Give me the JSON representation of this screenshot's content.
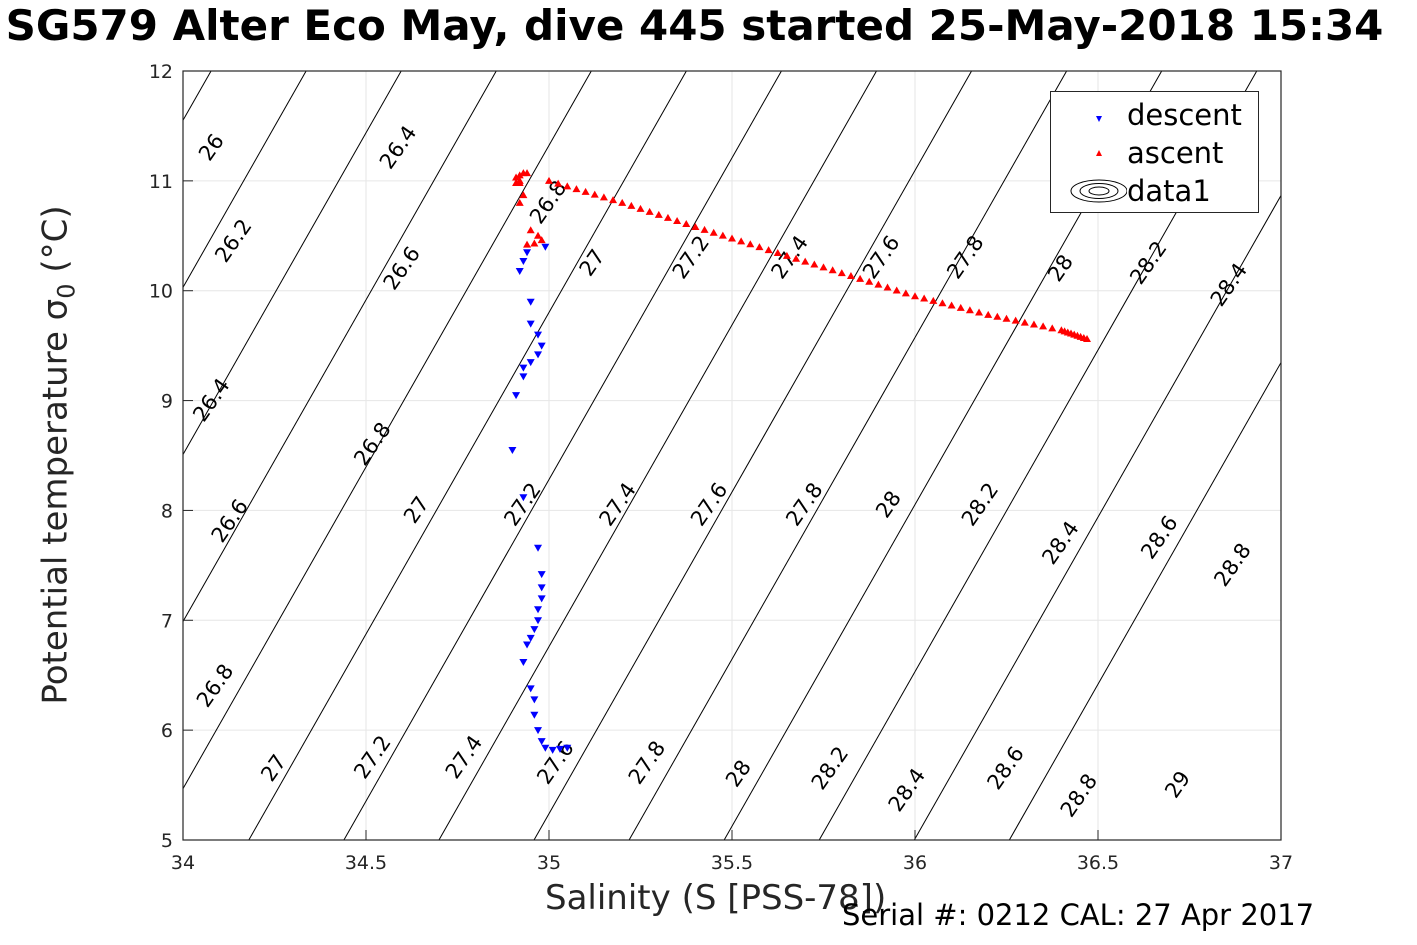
{
  "title": "SG579 Alter Eco May, dive 445 started 25-May-2018 15:34",
  "footer": "Serial #: 0212  CAL: 27 Apr 2017",
  "chart_data": {
    "type": "scatter",
    "title": "SG579 Alter Eco May, dive 445 started 25-May-2018 15:34",
    "xlabel": "Salinity (S [PSS-78])",
    "ylabel": "Potential temperature σ₀ (°C)",
    "xlim": [
      34,
      37
    ],
    "ylim": [
      5,
      12
    ],
    "xticks": [
      34,
      34.5,
      35,
      35.5,
      36,
      36.5,
      37
    ],
    "xtick_labels": [
      "34",
      "34.5",
      "35",
      "35.5",
      "36",
      "36.5",
      "37"
    ],
    "yticks": [
      5,
      6,
      7,
      8,
      9,
      10,
      11,
      12
    ],
    "ytick_labels": [
      "5",
      "6",
      "7",
      "8",
      "9",
      "10",
      "11",
      "12"
    ],
    "grid": true,
    "legend": {
      "position": "top-right",
      "entries": [
        {
          "label": "descent",
          "marker": "triangle-down",
          "color": "#0000ff"
        },
        {
          "label": "ascent",
          "marker": "triangle-up",
          "color": "#ff0000"
        },
        {
          "label": "data1",
          "marker": "contour",
          "color": "#000000"
        }
      ]
    },
    "contour_levels": [
      26,
      26.2,
      26.4,
      26.6,
      26.8,
      27,
      27.2,
      27.4,
      27.6,
      27.8,
      28,
      28.2,
      28.4,
      28.6,
      28.8,
      29
    ],
    "contour_labels": [
      {
        "text": "26",
        "s": 34.08,
        "t": 11.3
      },
      {
        "text": "26.4",
        "s": 34.59,
        "t": 11.3
      },
      {
        "text": "26.2",
        "s": 34.14,
        "t": 10.45
      },
      {
        "text": "26.6",
        "s": 34.6,
        "t": 10.2
      },
      {
        "text": "26.8",
        "s": 35.0,
        "t": 10.8
      },
      {
        "text": "27",
        "s": 35.12,
        "t": 10.25
      },
      {
        "text": "27.2",
        "s": 35.39,
        "t": 10.3
      },
      {
        "text": "27.4",
        "s": 35.66,
        "t": 10.3
      },
      {
        "text": "27.6",
        "s": 35.91,
        "t": 10.3
      },
      {
        "text": "27.8",
        "s": 36.14,
        "t": 10.3
      },
      {
        "text": "28",
        "s": 36.4,
        "t": 10.2
      },
      {
        "text": "28.2",
        "s": 36.64,
        "t": 10.25
      },
      {
        "text": "28.4",
        "s": 36.86,
        "t": 10.05
      },
      {
        "text": "26.4",
        "s": 34.08,
        "t": 9.0
      },
      {
        "text": "26.8",
        "s": 34.52,
        "t": 8.6
      },
      {
        "text": "26.6",
        "s": 34.13,
        "t": 7.9
      },
      {
        "text": "27",
        "s": 34.64,
        "t": 8.0
      },
      {
        "text": "27.2",
        "s": 34.93,
        "t": 8.05
      },
      {
        "text": "27.4",
        "s": 35.19,
        "t": 8.05
      },
      {
        "text": "27.6",
        "s": 35.44,
        "t": 8.05
      },
      {
        "text": "27.8",
        "s": 35.7,
        "t": 8.05
      },
      {
        "text": "28",
        "s": 35.93,
        "t": 8.05
      },
      {
        "text": "28.2",
        "s": 36.18,
        "t": 8.05
      },
      {
        "text": "28.4",
        "s": 36.4,
        "t": 7.7
      },
      {
        "text": "28.6",
        "s": 36.67,
        "t": 7.75
      },
      {
        "text": "28.8",
        "s": 36.87,
        "t": 7.5
      },
      {
        "text": "26.8",
        "s": 34.09,
        "t": 6.4
      },
      {
        "text": "27",
        "s": 34.25,
        "t": 5.65
      },
      {
        "text": "27.2",
        "s": 34.52,
        "t": 5.75
      },
      {
        "text": "27.4",
        "s": 34.77,
        "t": 5.75
      },
      {
        "text": "27.6",
        "s": 35.02,
        "t": 5.7
      },
      {
        "text": "27.8",
        "s": 35.27,
        "t": 5.7
      },
      {
        "text": "28",
        "s": 35.52,
        "t": 5.6
      },
      {
        "text": "28.2",
        "s": 35.77,
        "t": 5.65
      },
      {
        "text": "28.4",
        "s": 35.98,
        "t": 5.45
      },
      {
        "text": "28.6",
        "s": 36.25,
        "t": 5.65
      },
      {
        "text": "28.8",
        "s": 36.45,
        "t": 5.4
      },
      {
        "text": "29",
        "s": 36.72,
        "t": 5.5
      }
    ],
    "series": [
      {
        "name": "descent",
        "marker": "triangle-down",
        "color": "#0000ff",
        "x": [
          34.99,
          34.94,
          34.93,
          34.92,
          34.95,
          34.95,
          34.97,
          34.98,
          34.97,
          34.95,
          34.93,
          34.93,
          34.91,
          34.9,
          34.93,
          34.97,
          34.98,
          34.98,
          34.98,
          34.97,
          34.97,
          34.96,
          34.95,
          34.94,
          34.93,
          34.95,
          34.96,
          34.96,
          34.97,
          34.98,
          34.99,
          35.01,
          35.03,
          35.05
        ],
        "y": [
          10.4,
          10.35,
          10.27,
          10.18,
          9.9,
          9.7,
          9.6,
          9.5,
          9.42,
          9.35,
          9.3,
          9.22,
          9.05,
          8.55,
          8.12,
          7.66,
          7.42,
          7.3,
          7.2,
          7.1,
          7.0,
          6.92,
          6.84,
          6.78,
          6.62,
          6.38,
          6.28,
          6.14,
          6.0,
          5.9,
          5.84,
          5.82,
          5.83,
          5.84
        ]
      },
      {
        "name": "ascent",
        "marker": "triangle-up",
        "color": "#ff0000",
        "x": [
          34.93,
          34.91,
          34.92,
          34.92,
          34.95,
          34.97,
          34.98,
          34.96,
          34.94,
          34.93,
          34.92,
          34.91,
          34.92,
          34.94,
          35.0,
          35.2,
          35.4,
          35.6,
          35.8,
          36.0,
          36.2,
          36.4,
          36.47
        ],
        "y": [
          11.07,
          11.03,
          11.0,
          10.98,
          10.55,
          10.5,
          10.46,
          10.43,
          10.42,
          10.87,
          10.8,
          10.98,
          11.05,
          11.07,
          11.0,
          10.8,
          10.58,
          10.37,
          10.16,
          9.95,
          9.78,
          9.64,
          9.56
        ]
      }
    ]
  }
}
